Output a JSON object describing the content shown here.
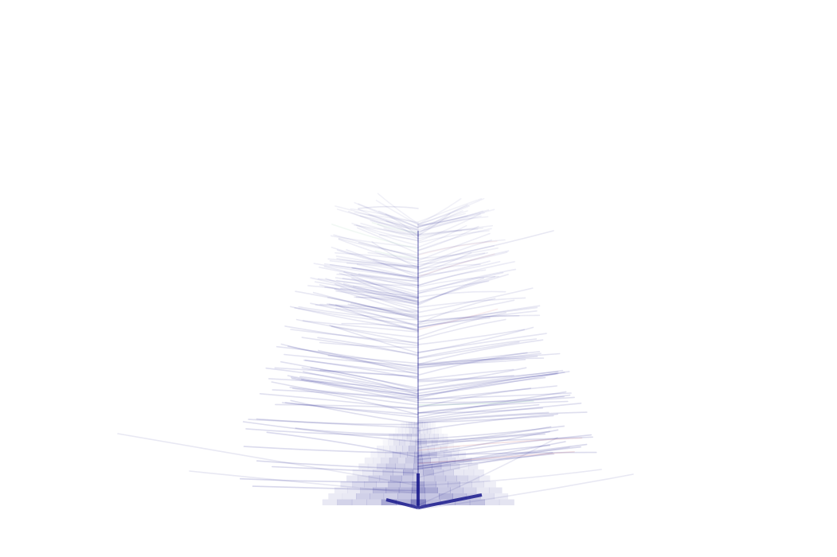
{
  "colors": {
    "background": "#ffffff",
    "primary_branch": "#1a1a8c",
    "secondary_branch_red": "#c0505a",
    "secondary_branch_green": "#3c9a6a"
  }
}
